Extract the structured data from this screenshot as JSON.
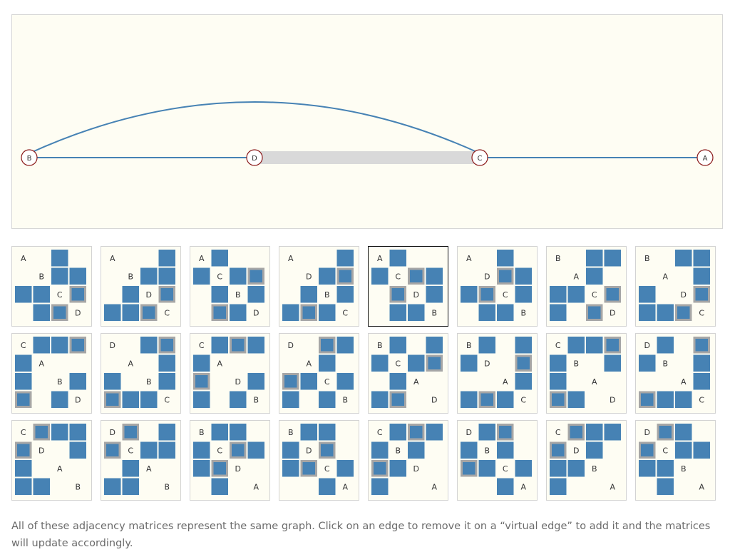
{
  "graph": {
    "nodes": [
      "B",
      "D",
      "C",
      "A"
    ],
    "edges": [
      [
        "B",
        "D"
      ],
      [
        "B",
        "C"
      ],
      [
        "C",
        "A"
      ]
    ],
    "virtual_edges": [
      [
        "D",
        "C"
      ]
    ],
    "colors": {
      "edge": "#4682b4",
      "virtual_edge": "#d9d9d9",
      "node_stroke": "#8b1a1a",
      "node_fill": "#ffffff"
    }
  },
  "matrices": {
    "colors": {
      "cell": "#4682b4",
      "virtual_outline": "#a6a6a6",
      "background": "#fefdf3"
    },
    "selected_index": 4,
    "orders": [
      [
        "A",
        "B",
        "C",
        "D"
      ],
      [
        "A",
        "B",
        "D",
        "C"
      ],
      [
        "A",
        "C",
        "B",
        "D"
      ],
      [
        "A",
        "D",
        "B",
        "C"
      ],
      [
        "A",
        "C",
        "D",
        "B"
      ],
      [
        "A",
        "D",
        "C",
        "B"
      ],
      [
        "B",
        "A",
        "C",
        "D"
      ],
      [
        "B",
        "A",
        "D",
        "C"
      ],
      [
        "C",
        "A",
        "B",
        "D"
      ],
      [
        "D",
        "A",
        "B",
        "C"
      ],
      [
        "C",
        "A",
        "D",
        "B"
      ],
      [
        "D",
        "A",
        "C",
        "B"
      ],
      [
        "B",
        "C",
        "A",
        "D"
      ],
      [
        "B",
        "D",
        "A",
        "C"
      ],
      [
        "C",
        "B",
        "A",
        "D"
      ],
      [
        "D",
        "B",
        "A",
        "C"
      ],
      [
        "C",
        "D",
        "A",
        "B"
      ],
      [
        "D",
        "C",
        "A",
        "B"
      ],
      [
        "B",
        "C",
        "D",
        "A"
      ],
      [
        "B",
        "D",
        "C",
        "A"
      ],
      [
        "C",
        "B",
        "D",
        "A"
      ],
      [
        "D",
        "B",
        "C",
        "A"
      ],
      [
        "C",
        "D",
        "B",
        "A"
      ],
      [
        "D",
        "C",
        "B",
        "A"
      ]
    ]
  },
  "caption": "All of these adjacency matrices represent the same graph. Click on an edge to remove it on a “virtual edge” to add it and the matrices will update accordingly."
}
